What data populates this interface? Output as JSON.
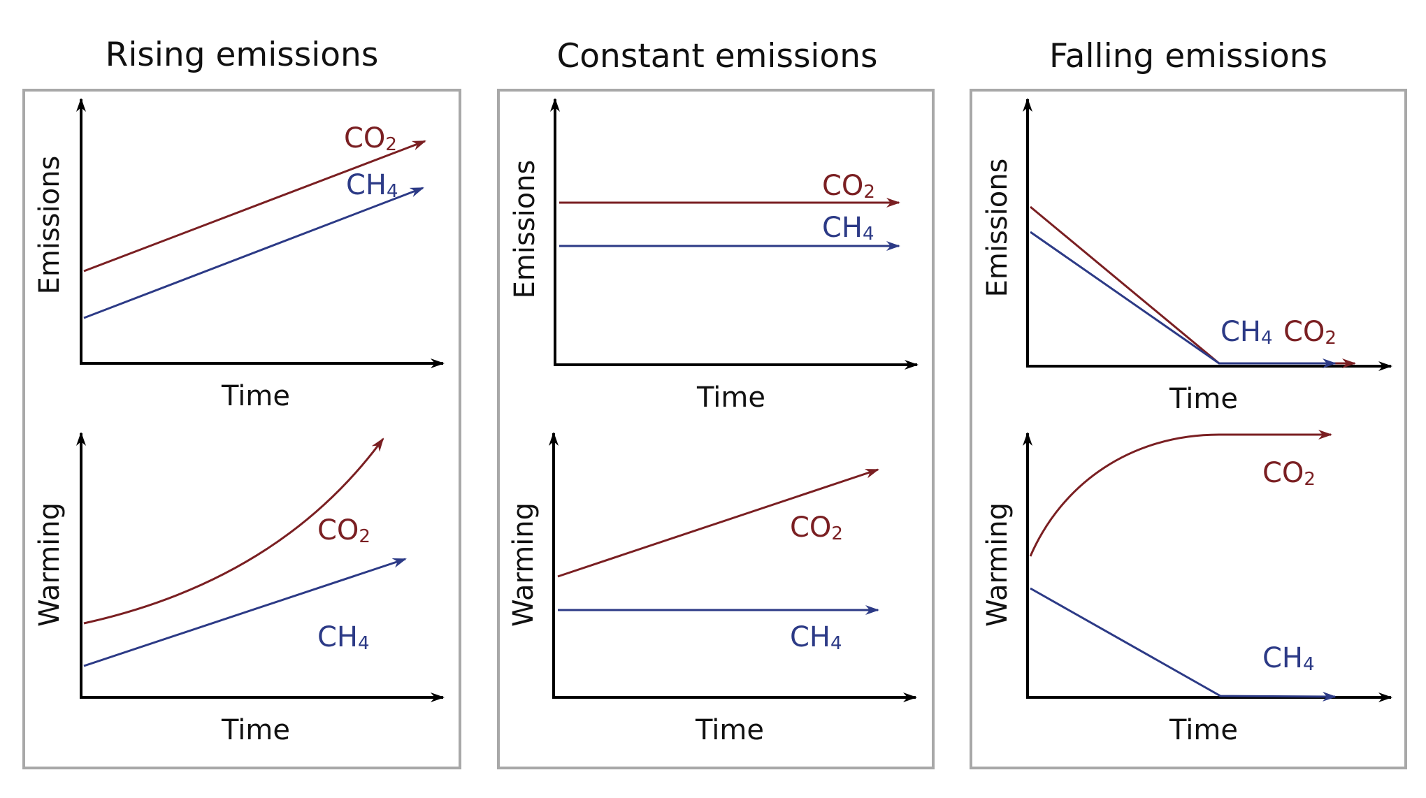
{
  "colors": {
    "co2": "#7a1f22",
    "ch4": "#2c3a86",
    "axis": "#000000",
    "frame": "#a8a8a8"
  },
  "columns": [
    {
      "title": "Rising emissions",
      "emissions": {
        "ylabel": "Emissions",
        "xlabel": "Time",
        "co2": {
          "label": "CO",
          "sub": "2",
          "trend": "rising"
        },
        "ch4": {
          "label": "CH",
          "sub": "4",
          "trend": "rising"
        }
      },
      "warming": {
        "ylabel": "Warming",
        "xlabel": "Time",
        "co2": {
          "label": "CO",
          "sub": "2",
          "trend": "accelerating"
        },
        "ch4": {
          "label": "CH",
          "sub": "4",
          "trend": "rising"
        }
      }
    },
    {
      "title": "Constant emissions",
      "emissions": {
        "ylabel": "Emissions",
        "xlabel": "Time",
        "co2": {
          "label": "CO",
          "sub": "2",
          "trend": "constant"
        },
        "ch4": {
          "label": "CH",
          "sub": "4",
          "trend": "constant"
        }
      },
      "warming": {
        "ylabel": "Warming",
        "xlabel": "Time",
        "co2": {
          "label": "CO",
          "sub": "2",
          "trend": "rising"
        },
        "ch4": {
          "label": "CH",
          "sub": "4",
          "trend": "constant"
        }
      }
    },
    {
      "title": "Falling emissions",
      "emissions": {
        "ylabel": "Emissions",
        "xlabel": "Time",
        "co2": {
          "label": "CO",
          "sub": "2",
          "trend": "falling to zero"
        },
        "ch4": {
          "label": "CH",
          "sub": "4",
          "trend": "falling to zero"
        }
      },
      "warming": {
        "ylabel": "Warming",
        "xlabel": "Time",
        "co2": {
          "label": "CO",
          "sub": "2",
          "trend": "levels off"
        },
        "ch4": {
          "label": "CH",
          "sub": "4",
          "trend": "falls to zero"
        }
      }
    }
  ]
}
